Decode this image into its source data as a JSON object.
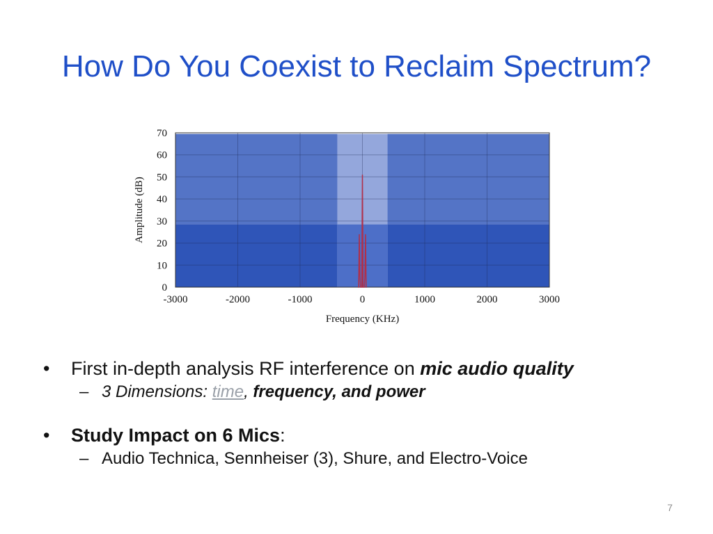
{
  "slide": {
    "title": "How Do You Coexist to Reclaim Spectrum?",
    "page_number": "7"
  },
  "chart_data": {
    "type": "line",
    "xlabel": "Frequency (KHz)",
    "ylabel": "Amplitude (dB)",
    "xlim": [
      -3000,
      3000
    ],
    "ylim": [
      0,
      70
    ],
    "x_ticks": [
      "-3000",
      "-2000",
      "-1000",
      "0",
      "1000",
      "2000",
      "3000"
    ],
    "y_ticks": [
      "0",
      "10",
      "20",
      "30",
      "40",
      "50",
      "60",
      "70"
    ],
    "grid": true,
    "colors": {
      "band_dark": "#2f55b8",
      "band_mid": "#5474c6",
      "band_light": "#94a7dc",
      "band_center_low": "#4d6fc8",
      "signal": "#b0304a"
    },
    "regions": [
      {
        "x": [
          -3000,
          -400
        ],
        "y": [
          0,
          28.5
        ],
        "level": "dark"
      },
      {
        "x": [
          -3000,
          -400
        ],
        "y": [
          28.5,
          69.5
        ],
        "level": "mid"
      },
      {
        "x": [
          400,
          3000
        ],
        "y": [
          0,
          28.5
        ],
        "level": "dark"
      },
      {
        "x": [
          400,
          3000
        ],
        "y": [
          28.5,
          69.5
        ],
        "level": "mid"
      },
      {
        "x": [
          -400,
          400
        ],
        "y": [
          0,
          28.5
        ],
        "level": "center_low"
      },
      {
        "x": [
          -400,
          400
        ],
        "y": [
          28.5,
          69.5
        ],
        "level": "light"
      }
    ],
    "series": [
      {
        "x": [
          -70,
          -60,
          -50,
          -40,
          -30,
          -20,
          -10,
          0,
          10,
          20,
          30,
          40,
          50,
          60,
          70
        ],
        "y": [
          0,
          0,
          24,
          5,
          0,
          0,
          0,
          51,
          0,
          0,
          0,
          5,
          24,
          0,
          0
        ]
      }
    ]
  },
  "bullets": [
    {
      "text_plain": "First in-depth analysis RF interference on ",
      "text_emph": "mic audio quality",
      "sub": {
        "prefix": "3 Dimensions:  ",
        "time": "time",
        "sep": ",  ",
        "rest": "frequency, and power"
      }
    },
    {
      "text_bold": "Study Impact on 6 Mics",
      "text_tail": ":",
      "sub": {
        "text": "Audio Technica, Sennheiser (3), Shure, and Electro-Voice"
      }
    }
  ]
}
